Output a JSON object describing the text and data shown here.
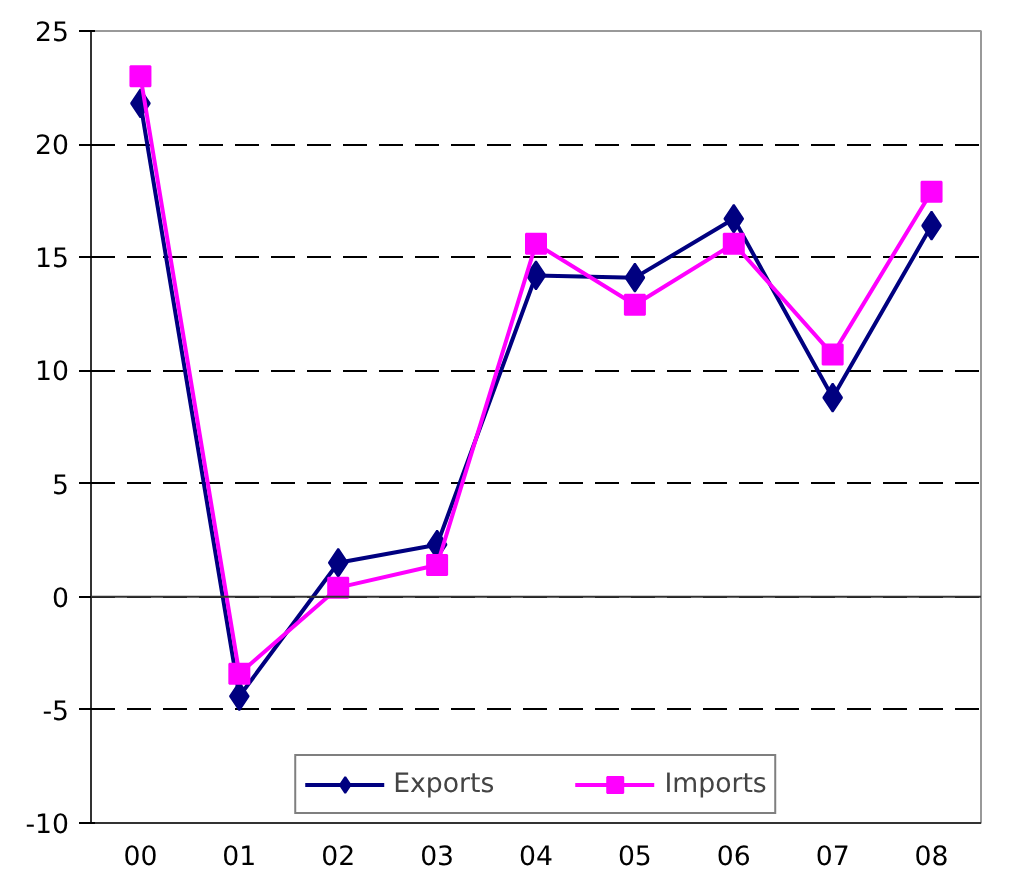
{
  "chart_data": {
    "type": "line",
    "categories": [
      "00",
      "01",
      "02",
      "03",
      "04",
      "05",
      "06",
      "07",
      "08"
    ],
    "series": [
      {
        "name": "Exports",
        "color": "#000080",
        "marker": "diamond",
        "values": [
          21.8,
          -4.4,
          1.5,
          2.3,
          14.2,
          14.1,
          16.7,
          8.8,
          16.4
        ]
      },
      {
        "name": "Imports",
        "color": "#ff00ff",
        "marker": "square",
        "values": [
          23.0,
          -3.4,
          0.4,
          1.4,
          15.6,
          12.9,
          15.6,
          10.7,
          17.9
        ]
      }
    ],
    "ylim": [
      -10,
      25
    ],
    "yticks": [
      -10,
      -5,
      0,
      5,
      10,
      15,
      20,
      25
    ],
    "grid": "y",
    "legend": "bottom",
    "line_style": "solid"
  }
}
